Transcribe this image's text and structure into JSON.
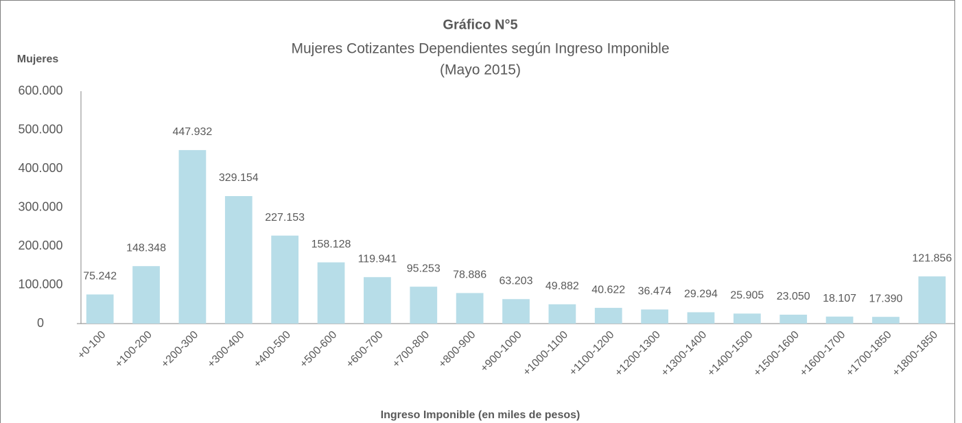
{
  "chart_data": {
    "type": "bar",
    "title": "Gráfico N°5",
    "subtitle": "Mujeres Cotizantes Dependientes según Ingreso Imponible",
    "subtitle2": "(Mayo 2015)",
    "y_label": "Mujeres",
    "x_label": "Ingreso Imponible (en miles de pesos)",
    "categories": [
      "+0-100",
      "+100-200",
      "+200-300",
      "+300-400",
      "+400-500",
      "+500-600",
      "+600-700",
      "+700-800",
      "+800-900",
      "+900-1000",
      "+1000-1100",
      "+1100-1200",
      "+1200-1300",
      "+1300-1400",
      "+1400-1500",
      "+1500-1600",
      "+1600-1700",
      "+1700-1850",
      "+1800-1850"
    ],
    "values": [
      75242,
      148348,
      447932,
      329154,
      227153,
      158128,
      119941,
      95253,
      78886,
      63203,
      49882,
      40622,
      36474,
      29294,
      25905,
      23050,
      18107,
      17390,
      121856
    ],
    "value_labels": [
      "75.242",
      "148.348",
      "447.932",
      "329.154",
      "227.153",
      "158.128",
      "119.941",
      "95.253",
      "78.886",
      "63.203",
      "49.882",
      "40.622",
      "36.474",
      "29.294",
      "25.905",
      "23.050",
      "18.107",
      "17.390",
      "121.856"
    ],
    "color": "#b7dde8",
    "ylim": [
      0,
      600000
    ],
    "yticks": [
      0,
      {
        "value": 100000,
        "label": "100.000"
      },
      {
        "value": 200000,
        "label": "200.000"
      },
      {
        "value": 300000,
        "label": "300.000"
      },
      {
        "value": 400000,
        "label": "400.000"
      },
      {
        "value": 500000,
        "label": "500.000"
      },
      {
        "value": 600000,
        "label": "600.000"
      }
    ],
    "grid": false
  }
}
